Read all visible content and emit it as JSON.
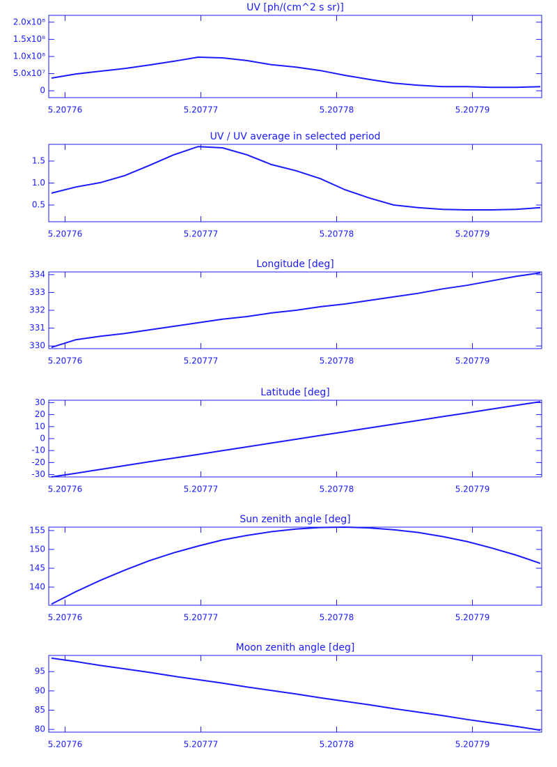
{
  "chart_data": [
    {
      "type": "line",
      "title": "UV [ph/(cm^2 s sr)]",
      "color": "#1a1aff",
      "x": [
        5.207759,
        5.2077608,
        5.2077626,
        5.2077644,
        5.2077662,
        5.207768,
        5.2077698,
        5.2077716,
        5.2077734,
        5.2077752,
        5.207777,
        5.2077788,
        5.2077806,
        5.2077824,
        5.2077842,
        5.207786,
        5.2077878,
        5.2077896,
        5.2077914,
        5.2077932,
        5.207795
      ],
      "values": [
        37000000,
        49000000,
        57000000,
        65000000,
        75000000,
        86000000,
        98000000,
        96000000,
        88000000,
        76000000,
        69000000,
        59000000,
        45000000,
        33000000,
        22000000,
        16000000,
        12000000,
        12000000,
        10000000,
        10000000,
        12000000
      ],
      "xlim": [
        5.2077588,
        5.2077951
      ],
      "xticks": [
        5.20776,
        5.20777,
        5.20778,
        5.20779
      ],
      "ylim": [
        -20000000,
        220000000
      ],
      "yticks": [
        0,
        {
          "value": 50000000,
          "label": "5.0x10⁷"
        },
        {
          "value": 100000000,
          "label": "1.0x10⁸"
        },
        {
          "value": 150000000,
          "label": "1.5x10⁸"
        },
        {
          "value": 200000000,
          "label": "2.0x10⁸"
        }
      ]
    },
    {
      "type": "line",
      "title": "UV / UV average in selected period",
      "color": "#1a1aff",
      "x": [
        5.207759,
        5.2077608,
        5.2077626,
        5.2077644,
        5.2077662,
        5.207768,
        5.2077698,
        5.2077716,
        5.2077734,
        5.2077752,
        5.207777,
        5.2077788,
        5.2077806,
        5.2077824,
        5.2077842,
        5.207786,
        5.2077878,
        5.2077896,
        5.2077914,
        5.2077932,
        5.207795
      ],
      "values": [
        0.77,
        0.91,
        1.01,
        1.17,
        1.4,
        1.64,
        1.83,
        1.8,
        1.64,
        1.42,
        1.28,
        1.1,
        0.85,
        0.66,
        0.5,
        0.44,
        0.4,
        0.39,
        0.39,
        0.4,
        0.44
      ],
      "xlim": [
        5.2077588,
        5.2077951
      ],
      "xticks": [
        5.20776,
        5.20777,
        5.20778,
        5.20779
      ],
      "ylim": [
        0.12,
        1.88
      ],
      "yticks": [
        0.5,
        {
          "value": 1,
          "label": "1.0"
        },
        1.5
      ]
    },
    {
      "type": "line",
      "title": "Longitude [deg]",
      "color": "#1a1aff",
      "x": [
        5.207759,
        5.2077608,
        5.2077626,
        5.2077644,
        5.2077662,
        5.207768,
        5.2077698,
        5.2077716,
        5.2077734,
        5.2077752,
        5.207777,
        5.2077788,
        5.2077806,
        5.2077824,
        5.2077842,
        5.207786,
        5.2077878,
        5.2077896,
        5.2077914,
        5.2077932,
        5.207795
      ],
      "values": [
        329.92,
        330.35,
        330.54,
        330.7,
        330.9,
        331.1,
        331.3,
        331.5,
        331.65,
        331.85,
        332.0,
        332.2,
        332.35,
        332.55,
        332.75,
        332.95,
        333.2,
        333.4,
        333.65,
        333.9,
        334.1
      ],
      "xlim": [
        5.2077588,
        5.2077951
      ],
      "xticks": [
        5.20776,
        5.20777,
        5.20778,
        5.20779
      ],
      "ylim": [
        329.85,
        334.15
      ],
      "yticks": [
        330,
        331,
        332,
        333,
        334
      ]
    },
    {
      "type": "line",
      "title": "Latitude [deg]",
      "color": "#1a1aff",
      "x": [
        5.207759,
        5.2077608,
        5.2077626,
        5.2077644,
        5.2077662,
        5.207768,
        5.2077698,
        5.2077716,
        5.2077734,
        5.2077752,
        5.207777,
        5.2077788,
        5.2077806,
        5.2077824,
        5.2077842,
        5.207786,
        5.2077878,
        5.2077896,
        5.2077914,
        5.2077932,
        5.207795
      ],
      "values": [
        -32,
        -28.9,
        -25.7,
        -22.6,
        -19.4,
        -16.3,
        -13.2,
        -10.0,
        -6.9,
        -3.7,
        -0.6,
        2.6,
        5.7,
        8.9,
        12.0,
        15.1,
        18.3,
        21.4,
        24.6,
        27.7,
        30.8
      ],
      "xlim": [
        5.2077588,
        5.2077951
      ],
      "xticks": [
        5.20776,
        5.20777,
        5.20778,
        5.20779
      ],
      "ylim": [
        -32,
        32
      ],
      "yticks": [
        -30,
        -20,
        -10,
        0,
        10,
        20,
        30
      ]
    },
    {
      "type": "line",
      "title": "Sun zenith angle [deg]",
      "color": "#1a1aff",
      "x": [
        5.207759,
        5.2077608,
        5.2077626,
        5.2077644,
        5.2077662,
        5.207768,
        5.2077698,
        5.2077716,
        5.2077734,
        5.2077752,
        5.207777,
        5.2077788,
        5.2077806,
        5.2077824,
        5.2077842,
        5.207786,
        5.2077878,
        5.2077896,
        5.2077914,
        5.2077932,
        5.207795
      ],
      "values": [
        135.5,
        138.8,
        141.8,
        144.5,
        147.0,
        149.1,
        150.9,
        152.5,
        153.7,
        154.7,
        155.4,
        155.8,
        155.9,
        155.7,
        155.2,
        154.5,
        153.4,
        152.1,
        150.4,
        148.5,
        146.3
      ],
      "xlim": [
        5.2077588,
        5.2077951
      ],
      "xticks": [
        5.20776,
        5.20777,
        5.20778,
        5.20779
      ],
      "ylim": [
        135.2,
        155.9
      ],
      "yticks": [
        140,
        145,
        150,
        155
      ]
    },
    {
      "type": "line",
      "title": "Moon zenith angle [deg]",
      "color": "#1a1aff",
      "x": [
        5.207759,
        5.2077608,
        5.2077626,
        5.2077644,
        5.2077662,
        5.207768,
        5.2077698,
        5.2077716,
        5.2077734,
        5.2077752,
        5.207777,
        5.2077788,
        5.2077806,
        5.2077824,
        5.2077842,
        5.207786,
        5.2077878,
        5.2077896,
        5.2077914,
        5.2077932,
        5.207795
      ],
      "values": [
        98.5,
        97.6,
        96.6,
        95.7,
        94.8,
        93.8,
        92.9,
        92.0,
        91.0,
        90.1,
        89.2,
        88.2,
        87.3,
        86.4,
        85.4,
        84.5,
        83.6,
        82.6,
        81.7,
        80.8,
        79.8
      ],
      "xlim": [
        5.2077588,
        5.2077951
      ],
      "xticks": [
        5.20776,
        5.20777,
        5.20778,
        5.20779
      ],
      "ylim": [
        79.3,
        99.2
      ],
      "yticks": [
        80,
        85,
        90,
        95
      ]
    }
  ]
}
